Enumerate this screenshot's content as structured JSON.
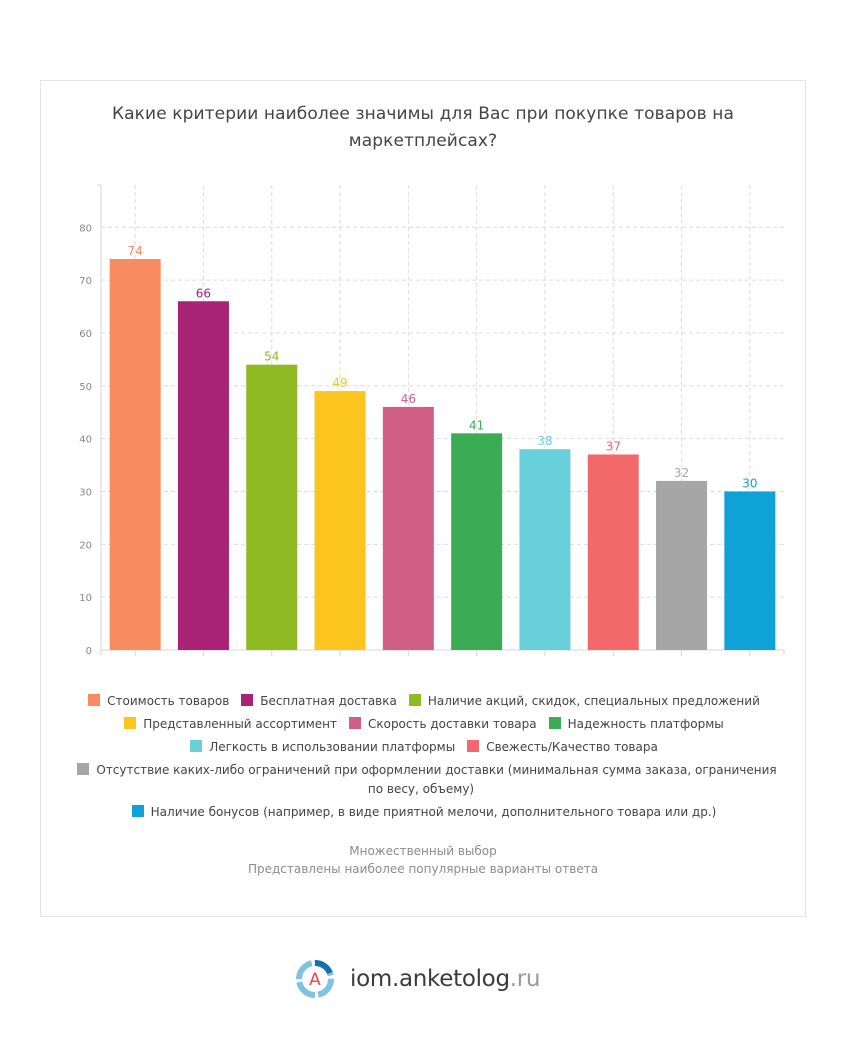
{
  "chart_data": {
    "type": "bar",
    "title": "Какие критерии наиболее значимы для Вас при покупке товаров на маркетплейсах?",
    "xlabel": "",
    "ylabel": "",
    "ylim": [
      0,
      88
    ],
    "yticks": [
      0,
      10,
      20,
      30,
      40,
      50,
      60,
      70,
      80
    ],
    "grid": true,
    "legend_position": "bottom",
    "categories": [
      "Стоимость товаров",
      "Бесплатная доставка",
      "Наличие акций, скидок, специальных предложений",
      "Представленный ассортимент",
      "Скорость доставки товара",
      "Надежность платформы",
      "Легкость в использовании платформы",
      "Свежесть/Качество товара",
      "Отсутствие каких-либо ограничений при оформлении доставки (минимальная сумма заказа, ограничения по весу, объему)",
      "Наличие бонусов (например, в виде приятной мелочи, дополнительного товара или др.)"
    ],
    "values": [
      74,
      66,
      54,
      49,
      46,
      41,
      38,
      37,
      32,
      30
    ],
    "colors": [
      "#f68c5f",
      "#a82276",
      "#8fba22",
      "#fbc41f",
      "#d15e84",
      "#3bab55",
      "#68d0da",
      "#f2686b",
      "#a6a6a6",
      "#0ea2d6"
    ],
    "legend_rows": [
      [
        0,
        1,
        2
      ],
      [
        3,
        4,
        5
      ],
      [
        6,
        7
      ],
      [
        8
      ],
      [
        9
      ]
    ]
  },
  "notes": {
    "line1": "Множественный выбор",
    "line2": "Представлены наиболее популярные варианты ответа"
  },
  "logo": {
    "icon_letter": "A",
    "name": "iom.anketolog",
    "tld": ".ru"
  }
}
